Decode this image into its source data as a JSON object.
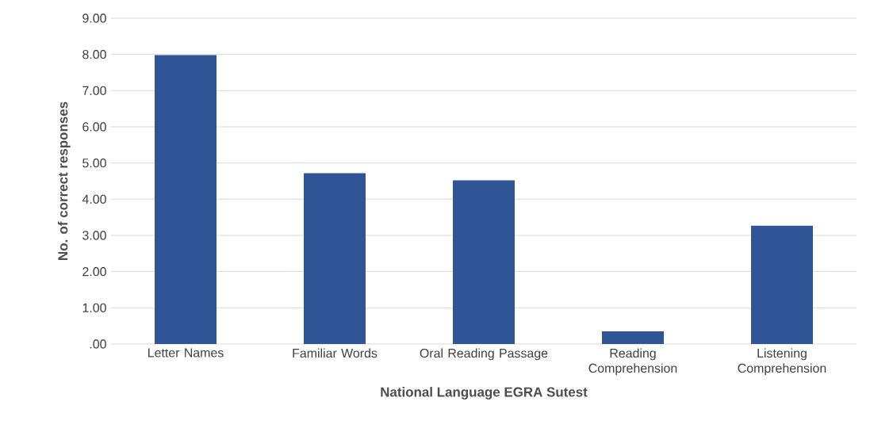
{
  "chart_data": {
    "type": "bar",
    "xlabel": "National Language EGRA Sutest",
    "ylabel": "No. of correct responses",
    "categories": [
      "Letter Names",
      "Familiar Words",
      "Oral Reading Passage",
      "Reading Comprehension",
      "Listening Comprehension"
    ],
    "values": [
      7.98,
      4.72,
      4.52,
      0.35,
      3.27
    ],
    "color": "#2f5597",
    "ylim": [
      0,
      9
    ],
    "yticks": [
      {
        "value": 0,
        "label": ".00"
      },
      {
        "value": 1,
        "label": "1.00"
      },
      {
        "value": 2,
        "label": "2.00"
      },
      {
        "value": 3,
        "label": "3.00"
      },
      {
        "value": 4,
        "label": "4.00"
      },
      {
        "value": 5,
        "label": "5.00"
      },
      {
        "value": 6,
        "label": "6.00"
      },
      {
        "value": 7,
        "label": "7.00"
      },
      {
        "value": 8,
        "label": "8.00"
      },
      {
        "value": 9,
        "label": "9.00"
      }
    ],
    "grid": "y"
  }
}
